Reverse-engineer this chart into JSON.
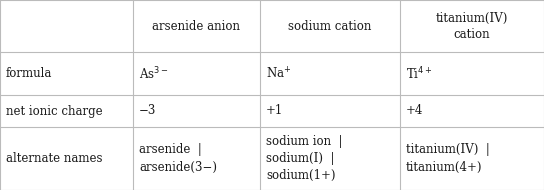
{
  "col_headers": [
    "arsenide anion",
    "sodium cation",
    "titanium(IV)\ncation"
  ],
  "row_labels": [
    "formula",
    "net ionic charge",
    "alternate names"
  ],
  "formulas_latex": [
    "$\\mathrm{As}^{3-}$",
    "$\\mathrm{Na}^{+}$",
    "$\\mathrm{Ti}^{4+}$"
  ],
  "charges": [
    "−3",
    "+1",
    "+4"
  ],
  "alt_names": [
    "arsenide  |\narsenide(3−)",
    "sodium ion  |\nsodium(I)  |\nsodium(1+)",
    "titanium(IV)  |\ntitanium(4+)"
  ],
  "bg_color": "#ffffff",
  "line_color": "#bbbbbb",
  "text_color": "#1a1a1a",
  "fontsize": 8.5,
  "font_family": "DejaVu Serif"
}
